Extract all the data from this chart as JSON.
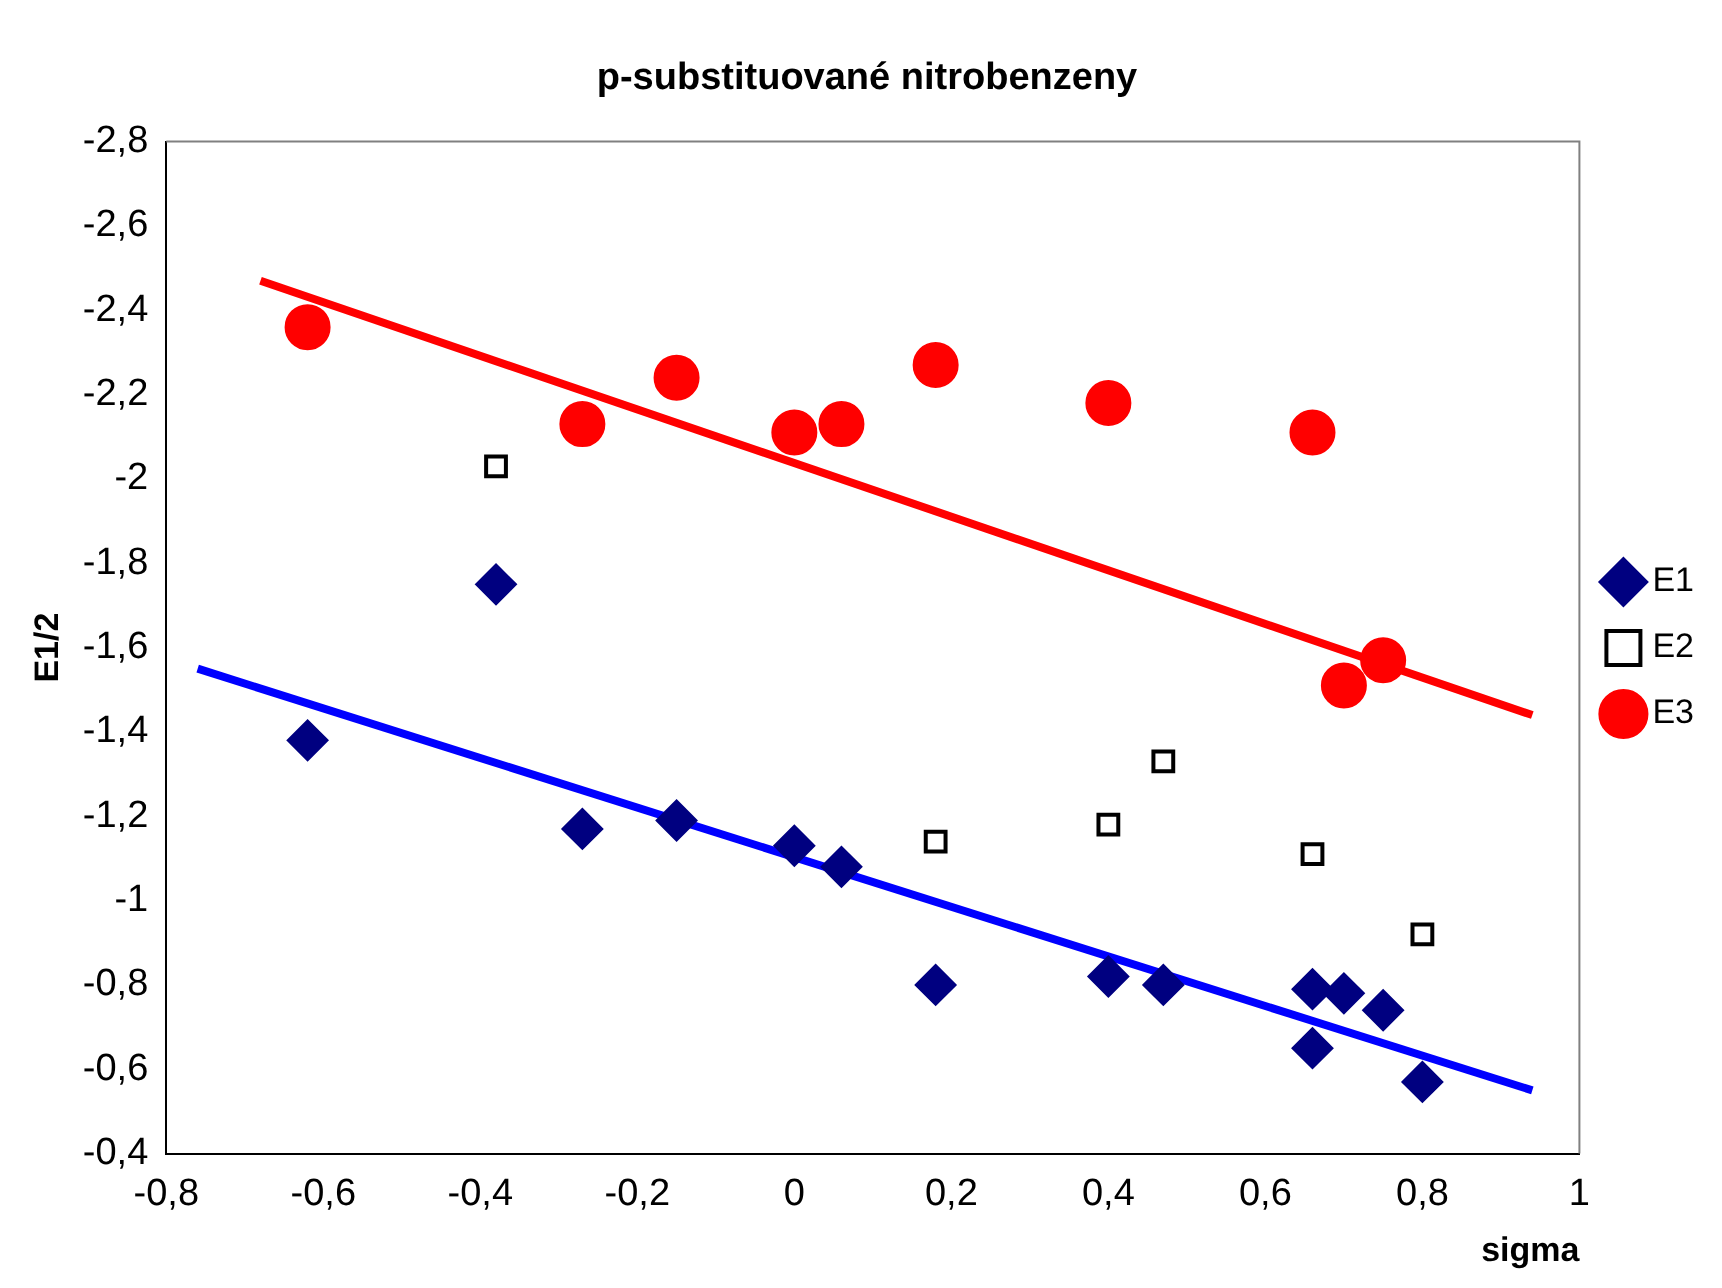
{
  "chart_data": {
    "type": "scatter",
    "title": "p-substituované nitrobenzeny",
    "xlabel": "sigma",
    "ylabel": "E1/2",
    "xlim": [
      -0.8,
      1
    ],
    "xticks": [
      {
        "value": -0.8,
        "label": "-0,8"
      },
      {
        "value": -0.6,
        "label": "-0,6"
      },
      {
        "value": -0.4,
        "label": "-0,4"
      },
      {
        "value": -0.2,
        "label": "-0,2"
      },
      0,
      {
        "value": 0.2,
        "label": "0,2"
      },
      {
        "value": 0.4,
        "label": "0,4"
      },
      {
        "value": 0.6,
        "label": "0,6"
      },
      {
        "value": 0.8,
        "label": "0,8"
      },
      1
    ],
    "ylim": [
      -0.4,
      -2.8
    ],
    "yticks": [
      {
        "value": -0.4,
        "label": "-0,4"
      },
      {
        "value": -0.6,
        "label": "-0,6"
      },
      {
        "value": -0.8,
        "label": "-0,8"
      },
      -1,
      {
        "value": -1.2,
        "label": "-1,2"
      },
      {
        "value": -1.4,
        "label": "-1,4"
      },
      {
        "value": -1.6,
        "label": "-1,6"
      },
      {
        "value": -1.8,
        "label": "-1,8"
      },
      -2,
      {
        "value": -2.2,
        "label": "-2,2"
      },
      {
        "value": -2.4,
        "label": "-2,4"
      },
      {
        "value": -2.6,
        "label": "-2,6"
      },
      {
        "value": -2.8,
        "label": "-2,8"
      }
    ],
    "grid": false,
    "legend": "right",
    "series": [
      {
        "name": "E1",
        "color": "#000080",
        "marker": "diamond",
        "x": [
          -0.62,
          -0.38,
          -0.27,
          -0.15,
          0,
          0.06,
          0.18,
          0.4,
          0.47,
          0.66,
          0.7,
          0.75,
          0.66,
          0.8
        ],
        "values": [
          -1.38,
          -1.75,
          -1.17,
          -1.19,
          -1.13,
          -1.08,
          -0.8,
          -0.82,
          -0.8,
          -0.79,
          -0.78,
          -0.74,
          -0.65,
          -0.57
        ]
      },
      {
        "name": "E2",
        "color": "#000000",
        "marker": "square",
        "x": [
          -0.38,
          0.18,
          0.4,
          0.47,
          0.66,
          0.8
        ],
        "values": [
          -2.03,
          -1.14,
          -1.18,
          -1.33,
          -1.11,
          -0.92
        ]
      },
      {
        "name": "E3",
        "color": "#ff0000",
        "marker": "circle",
        "x": [
          -0.62,
          -0.27,
          -0.15,
          0,
          0.06,
          0.18,
          0.4,
          0.66,
          0.7,
          0.75
        ],
        "values": [
          -2.36,
          -2.13,
          -2.24,
          -2.11,
          -2.13,
          -2.27,
          -2.18,
          -2.11,
          -1.51,
          -1.57
        ]
      },
      {
        "type": "line",
        "color": "#0000ff",
        "marker": "none",
        "x": [
          -0.76,
          0.94
        ],
        "values": [
          -1.55,
          -0.55
        ]
      },
      {
        "type": "line",
        "color": "#ff0000",
        "marker": "none",
        "x": [
          -0.68,
          0.94
        ],
        "values": [
          -2.47,
          -1.44
        ]
      }
    ]
  }
}
